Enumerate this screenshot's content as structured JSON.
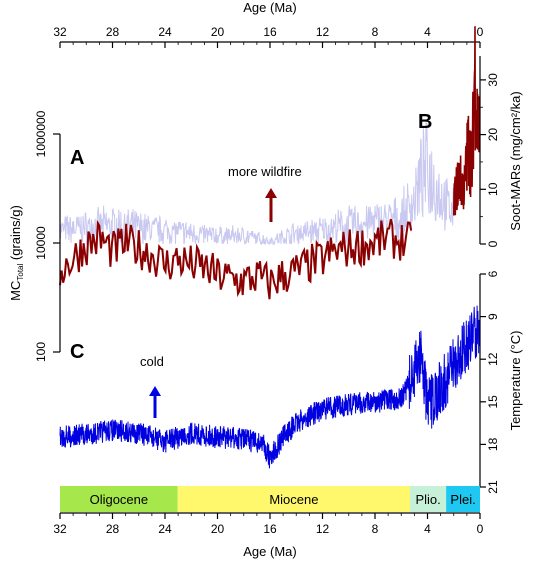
{
  "chart_data": {
    "type": "line",
    "x_axis": {
      "label": "Age (Ma)",
      "range": [
        32,
        0
      ],
      "ticks": [
        32,
        28,
        24,
        20,
        16,
        12,
        8,
        4,
        0
      ]
    },
    "panels": [
      {
        "id": "A",
        "letter": "A",
        "annotation": "more wildfire",
        "left_axis": {
          "label_main": "MC",
          "label_sub": "Total",
          "label_tail": " (grains/g)",
          "scale": "log",
          "range": [
            100,
            1000000
          ],
          "ticks": [
            100,
            10000,
            1000000
          ]
        },
        "series": [
          {
            "color": "#8b0000",
            "x": [
              32.0,
              31.0,
              30.0,
              29.0,
              28.0,
              27.0,
              26.0,
              25.0,
              24.0,
              23.0,
              22.0,
              21.0,
              20.0,
              19.0,
              18.0,
              17.0,
              16.0,
              15.0,
              14.0,
              13.0,
              12.0,
              11.0,
              10.0,
              9.0,
              8.0,
              7.0,
              6.0,
              5.2
            ],
            "y": [
              3000,
              5000,
              9000,
              12000,
              7000,
              10000,
              8000,
              6000,
              4000,
              5000,
              4000,
              3500,
              2500,
              2200,
              2000,
              2400,
              1800,
              2500,
              3000,
              4000,
              5000,
              7000,
              8000,
              9000,
              10000,
              12000,
              11000,
              10000
            ]
          }
        ]
      },
      {
        "id": "B",
        "letter": "B",
        "right_axis": {
          "label": "Soot-MARs (mg/cm²/ka)",
          "range": [
            0,
            34
          ],
          "ticks": [
            0,
            10,
            20,
            30
          ]
        },
        "series": [
          {
            "color": "#c8c8f0",
            "x": [
              32.0,
              30.0,
              28.0,
              26.0,
              24.0,
              22.0,
              20.0,
              18.0,
              16.0,
              14.0,
              12.0,
              10.0,
              8.0,
              6.0,
              5.0,
              4.5,
              4.0,
              3.5,
              3.0,
              2.5,
              2.0
            ],
            "y": [
              2.5,
              3.0,
              3.5,
              3.0,
              2.5,
              2.0,
              1.5,
              1.5,
              0.5,
              2.0,
              2.5,
              3.5,
              4.0,
              4.5,
              8.0,
              12.0,
              14.0,
              11.0,
              9.0,
              7.0,
              6.0
            ]
          },
          {
            "color": "#8b0000",
            "x": [
              2.0,
              1.6,
              1.2,
              0.9,
              0.6,
              0.4,
              0.2,
              0.0
            ],
            "y": [
              8.0,
              12.0,
              10.0,
              18.0,
              14.0,
              33.0,
              22.0,
              20.0
            ]
          }
        ]
      },
      {
        "id": "C",
        "letter": "C",
        "annotation": "cold",
        "right_axis": {
          "label": "Temperature (°C)",
          "range": [
            6,
            21
          ],
          "inverted": true,
          "ticks": [
            6,
            9,
            12,
            15,
            18,
            21
          ]
        },
        "series": [
          {
            "color": "#0000e0",
            "x": [
              32.0,
              30.0,
              28.0,
              26.0,
              24.0,
              22.0,
              20.0,
              18.0,
              16.5,
              16.0,
              15.0,
              14.0,
              13.0,
              12.0,
              10.0,
              8.0,
              6.0,
              5.0,
              4.5,
              4.0,
              3.0,
              2.0,
              1.0,
              0.0
            ],
            "y": [
              17.5,
              17.3,
              17.0,
              17.2,
              17.8,
              17.2,
              17.5,
              17.6,
              18.0,
              19.0,
              17.5,
              16.5,
              16.0,
              15.5,
              15.2,
              15.0,
              14.8,
              13.0,
              11.5,
              15.5,
              14.0,
              12.5,
              11.0,
              9.5
            ]
          }
        ]
      }
    ],
    "epochs": [
      {
        "name": "Oligocene",
        "start": 32.0,
        "end": 23.03,
        "color": "#a6e84c"
      },
      {
        "name": "Miocene",
        "start": 23.03,
        "end": 5.33,
        "color": "#fff86c"
      },
      {
        "name": "Plio.",
        "start": 5.33,
        "end": 2.58,
        "color": "#c6f0d8"
      },
      {
        "name": "Plei.",
        "start": 2.58,
        "end": 0.0,
        "color": "#1ec8f0"
      }
    ]
  }
}
